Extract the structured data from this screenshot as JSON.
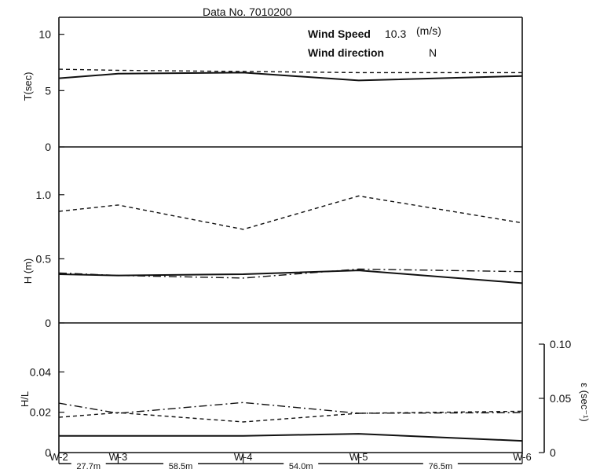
{
  "header": {
    "data_no": "Data No. 7010200",
    "wind_speed_label": "Wind Speed",
    "wind_speed_value": "10.3",
    "wind_speed_unit": "(m/s)",
    "wind_direction_label": "Wind direction",
    "wind_direction_value": "N"
  },
  "chart_data": [
    {
      "type": "line",
      "panel": "T",
      "ylabel": "T(sec)",
      "ylim": [
        0,
        12
      ],
      "yticks": [
        0,
        5,
        10
      ],
      "ytick_labels": [
        "0",
        "5",
        "10"
      ],
      "x": [
        0,
        27.7,
        86.2,
        140.2,
        216.7
      ],
      "series": [
        {
          "style": "solid",
          "values": [
            6.1,
            6.5,
            6.6,
            5.9,
            6.3
          ]
        },
        {
          "style": "dashed",
          "values": [
            6.9,
            6.8,
            6.7,
            6.6,
            6.6
          ]
        }
      ]
    },
    {
      "type": "line",
      "panel": "H",
      "ylabel": "H (m)",
      "ylim": [
        0,
        1.25
      ],
      "yticks": [
        0,
        0.5,
        1.0
      ],
      "ytick_labels": [
        "0",
        "0.5",
        "1.0"
      ],
      "x": [
        0,
        27.7,
        86.2,
        140.2,
        216.7
      ],
      "series": [
        {
          "style": "dashed",
          "values": [
            0.87,
            0.92,
            0.73,
            0.99,
            0.78
          ]
        },
        {
          "style": "solid",
          "values": [
            0.38,
            0.37,
            0.38,
            0.41,
            0.31
          ]
        },
        {
          "style": "dashdot",
          "values": [
            0.39,
            0.37,
            0.35,
            0.42,
            0.4
          ]
        }
      ]
    },
    {
      "type": "line",
      "panel": "H/L and ε",
      "ylabel": "H/L",
      "ylim": [
        0,
        0.06
      ],
      "yticks": [
        0,
        0.02,
        0.04
      ],
      "ytick_labels": [
        "0",
        "0.02",
        "0.04"
      ],
      "y2label": "ε (sec⁻¹)",
      "y2lim": [
        0,
        0.12
      ],
      "y2ticks": [
        0,
        0.05,
        0.1
      ],
      "y2tick_labels": [
        "0",
        "0.05",
        "0.10"
      ],
      "x": [
        0,
        27.7,
        86.2,
        140.2,
        216.7
      ],
      "series": [
        {
          "style": "dashdot",
          "axis": "H/L",
          "values": [
            0.0245,
            0.0195,
            0.0248,
            0.0195,
            0.0198
          ]
        },
        {
          "style": "dashed",
          "axis": "H/L",
          "values": [
            0.0175,
            0.0198,
            0.0152,
            0.0195,
            0.0205
          ]
        },
        {
          "style": "solid",
          "axis": "H/L",
          "values": [
            0.0083,
            0.0083,
            0.0083,
            0.0093,
            0.0058
          ]
        }
      ]
    }
  ],
  "stations": [
    "W-2",
    "W-3",
    "W-4",
    "W-5",
    "W-6"
  ],
  "distances": [
    "27.7m",
    "58.5m",
    "54.0m",
    "76.5m"
  ]
}
